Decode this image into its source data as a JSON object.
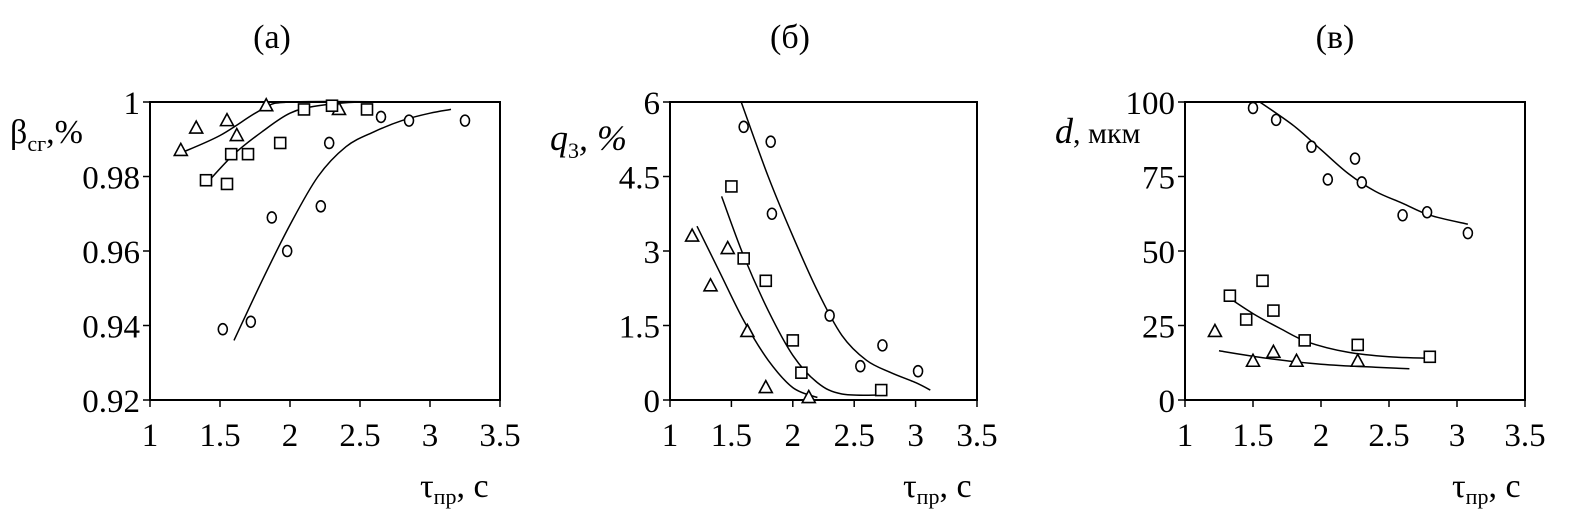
{
  "chart_data": [
    {
      "type": "scatter",
      "title": "(а)",
      "xlabel": "τ",
      "xlabel_sub": "пр",
      "xlabel_unit": ", с",
      "ylabel": "β",
      "ylabel_sub": "сг",
      "ylabel_unit": ",%",
      "xlim": [
        1,
        3.5
      ],
      "ylim": [
        0.92,
        1
      ],
      "x_ticks": [
        1,
        1.5,
        2,
        2.5,
        3,
        3.5
      ],
      "x_tick_labels": [
        "1",
        "1.5",
        "2",
        "2.5",
        "3",
        "3.5"
      ],
      "y_ticks": [
        0.92,
        0.94,
        0.96,
        0.98,
        1
      ],
      "y_tick_labels": [
        "0.92",
        "0.94",
        "0.96",
        "0.98",
        "1"
      ],
      "grid": false,
      "series": [
        {
          "marker": "triangle",
          "points": [
            [
              1.22,
              0.987
            ],
            [
              1.33,
              0.993
            ],
            [
              1.55,
              0.995
            ],
            [
              1.62,
              0.991
            ],
            [
              1.83,
              0.999
            ],
            [
              2.35,
              0.998
            ]
          ],
          "fit": [
            [
              1.2,
              0.986
            ],
            [
              1.5,
              0.991
            ],
            [
              1.8,
              0.998
            ],
            [
              2.0,
              1.0
            ],
            [
              2.8,
              1.0
            ]
          ]
        },
        {
          "marker": "square",
          "points": [
            [
              1.4,
              0.979
            ],
            [
              1.55,
              0.978
            ],
            [
              1.58,
              0.986
            ],
            [
              1.7,
              0.986
            ],
            [
              1.93,
              0.989
            ],
            [
              2.1,
              0.998
            ],
            [
              2.3,
              0.999
            ],
            [
              2.55,
              0.998
            ]
          ],
          "fit": [
            [
              1.4,
              0.978
            ],
            [
              1.6,
              0.986
            ],
            [
              1.8,
              0.992
            ],
            [
              2.0,
              0.997
            ],
            [
              2.2,
              0.999
            ],
            [
              2.5,
              1.0
            ],
            [
              2.9,
              1.0
            ]
          ]
        },
        {
          "marker": "circle",
          "points": [
            [
              1.52,
              0.939
            ],
            [
              1.72,
              0.941
            ],
            [
              1.87,
              0.969
            ],
            [
              1.98,
              0.96
            ],
            [
              2.22,
              0.972
            ],
            [
              2.28,
              0.989
            ],
            [
              2.65,
              0.996
            ],
            [
              2.85,
              0.995
            ],
            [
              3.25,
              0.995
            ]
          ],
          "fit": [
            [
              1.6,
              0.936
            ],
            [
              1.8,
              0.952
            ],
            [
              2.0,
              0.967
            ],
            [
              2.2,
              0.98
            ],
            [
              2.4,
              0.988
            ],
            [
              2.6,
              0.992
            ],
            [
              2.8,
              0.995
            ],
            [
              3.0,
              0.997
            ],
            [
              3.15,
              0.998
            ]
          ]
        }
      ]
    },
    {
      "type": "scatter",
      "title": "(б)",
      "xlabel": "τ",
      "xlabel_sub": "пр",
      "xlabel_unit": ", с",
      "ylabel": "q",
      "ylabel_sub": "3",
      "ylabel_unit": ", %",
      "xlim": [
        1,
        3.5
      ],
      "ylim": [
        0,
        6
      ],
      "x_ticks": [
        1,
        1.5,
        2,
        2.5,
        3,
        3.5
      ],
      "x_tick_labels": [
        "1",
        "1.5",
        "2",
        "2.5",
        "3",
        "3.5"
      ],
      "y_ticks": [
        0,
        1.5,
        3,
        4.5,
        6
      ],
      "y_tick_labels": [
        "0",
        "1.5",
        "3",
        "4.5",
        "6"
      ],
      "grid": false,
      "series": [
        {
          "marker": "triangle",
          "points": [
            [
              1.18,
              3.3
            ],
            [
              1.33,
              2.3
            ],
            [
              1.47,
              3.05
            ],
            [
              1.63,
              1.38
            ],
            [
              1.78,
              0.25
            ],
            [
              2.13,
              0.05
            ]
          ],
          "fit": [
            [
              1.22,
              3.5
            ],
            [
              1.4,
              2.6
            ],
            [
              1.6,
              1.6
            ],
            [
              1.8,
              0.8
            ],
            [
              2.0,
              0.25
            ],
            [
              2.2,
              0.05
            ]
          ]
        },
        {
          "marker": "square",
          "points": [
            [
              1.5,
              4.3
            ],
            [
              1.6,
              2.85
            ],
            [
              1.78,
              2.4
            ],
            [
              2.0,
              1.2
            ],
            [
              2.07,
              0.55
            ],
            [
              2.72,
              0.2
            ]
          ],
          "fit": [
            [
              1.42,
              4.1
            ],
            [
              1.6,
              2.9
            ],
            [
              1.8,
              1.8
            ],
            [
              2.0,
              0.9
            ],
            [
              2.2,
              0.35
            ],
            [
              2.4,
              0.12
            ],
            [
              2.72,
              0.1
            ]
          ]
        },
        {
          "marker": "circle",
          "points": [
            [
              1.6,
              5.5
            ],
            [
              1.82,
              5.2
            ],
            [
              1.83,
              3.75
            ],
            [
              2.3,
              1.7
            ],
            [
              2.55,
              0.68
            ],
            [
              2.73,
              1.1
            ],
            [
              3.02,
              0.58
            ]
          ],
          "fit": [
            [
              1.58,
              6.0
            ],
            [
              1.8,
              4.5
            ],
            [
              2.0,
              3.3
            ],
            [
              2.2,
              2.2
            ],
            [
              2.4,
              1.3
            ],
            [
              2.6,
              0.8
            ],
            [
              2.8,
              0.55
            ],
            [
              3.0,
              0.35
            ],
            [
              3.12,
              0.2
            ]
          ]
        }
      ]
    },
    {
      "type": "scatter",
      "title": "(в)",
      "xlabel": "τ",
      "xlabel_sub": "пр",
      "xlabel_unit": ", с",
      "ylabel": "d",
      "ylabel_unit": ", мкм",
      "xlim": [
        1,
        3.5
      ],
      "ylim": [
        0,
        100
      ],
      "x_ticks": [
        1,
        1.5,
        2,
        2.5,
        3,
        3.5
      ],
      "x_tick_labels": [
        "1",
        "1.5",
        "2",
        "2.5",
        "3",
        "3.5"
      ],
      "y_ticks": [
        0,
        25,
        50,
        75,
        100
      ],
      "y_tick_labels": [
        "0",
        "25",
        "50",
        "75",
        "100"
      ],
      "grid": false,
      "series": [
        {
          "marker": "triangle",
          "points": [
            [
              1.22,
              23
            ],
            [
              1.5,
              13
            ],
            [
              1.65,
              16
            ],
            [
              1.82,
              13
            ],
            [
              2.27,
              13
            ]
          ],
          "fit": [
            [
              1.25,
              16.5
            ],
            [
              1.6,
              14
            ],
            [
              2.0,
              12
            ],
            [
              2.4,
              11
            ],
            [
              2.65,
              10.5
            ]
          ]
        },
        {
          "marker": "square",
          "points": [
            [
              1.33,
              35
            ],
            [
              1.45,
              27
            ],
            [
              1.57,
              40
            ],
            [
              1.65,
              30
            ],
            [
              1.88,
              20
            ],
            [
              2.27,
              18.5
            ],
            [
              2.8,
              14.5
            ]
          ],
          "fit": [
            [
              1.3,
              35
            ],
            [
              1.5,
              29
            ],
            [
              1.7,
              24
            ],
            [
              1.9,
              19.5
            ],
            [
              2.2,
              16
            ],
            [
              2.5,
              14.5
            ],
            [
              2.8,
              14
            ]
          ]
        },
        {
          "marker": "circle",
          "points": [
            [
              1.5,
              98
            ],
            [
              1.67,
              94
            ],
            [
              1.93,
              85
            ],
            [
              2.05,
              74
            ],
            [
              2.25,
              81
            ],
            [
              2.3,
              73
            ],
            [
              2.6,
              62
            ],
            [
              2.78,
              63
            ],
            [
              3.08,
              56
            ]
          ],
          "fit": [
            [
              1.55,
              100
            ],
            [
              1.8,
              92
            ],
            [
              2.0,
              84
            ],
            [
              2.2,
              76
            ],
            [
              2.4,
              70
            ],
            [
              2.6,
              66
            ],
            [
              2.8,
              62
            ],
            [
              3.08,
              59
            ]
          ]
        }
      ]
    }
  ]
}
